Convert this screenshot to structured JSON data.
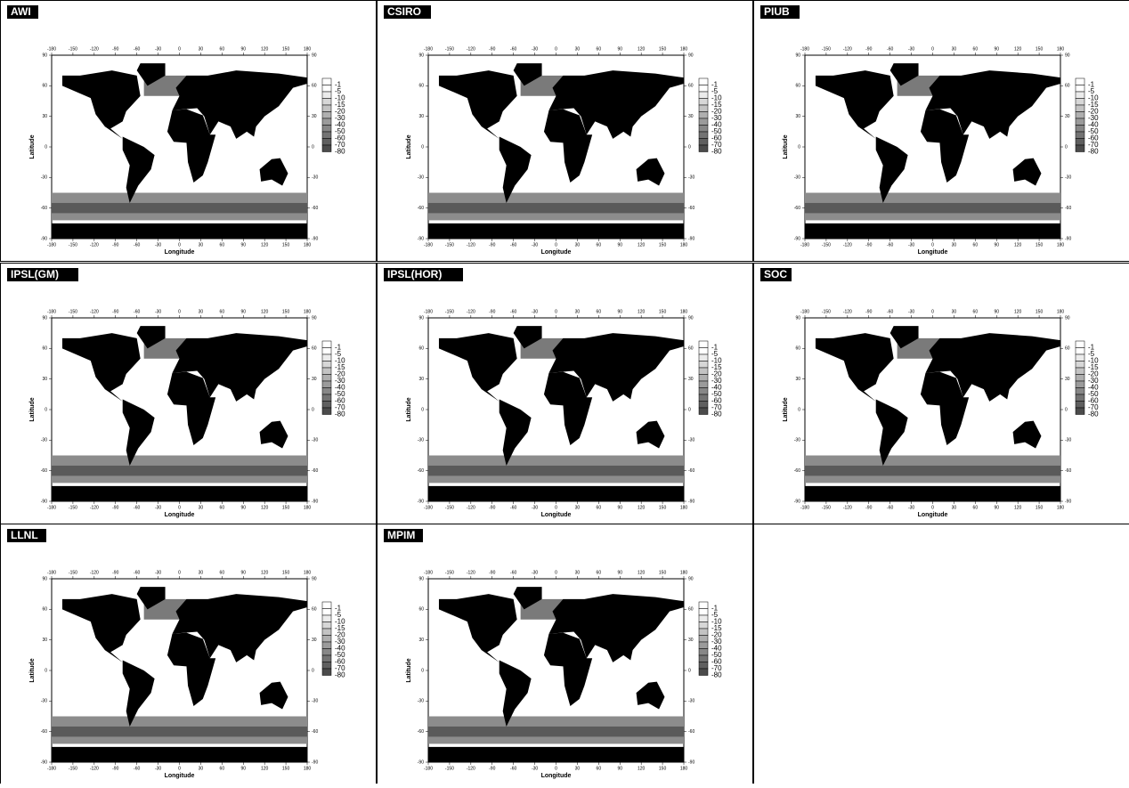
{
  "panels": [
    {
      "label": "AWI"
    },
    {
      "label": "CSIRO"
    },
    {
      "label": "PIUB"
    },
    {
      "label": "IPSL(GM)"
    },
    {
      "label": "IPSL(HOR)"
    },
    {
      "label": "SOC"
    },
    {
      "label": "LLNL"
    },
    {
      "label": "MPIM"
    }
  ],
  "axes": {
    "x_label": "Longitude",
    "y_label": "Latitude",
    "xticks": [
      -180,
      -150,
      -120,
      -90,
      -60,
      -30,
      0,
      30,
      60,
      90,
      120,
      150,
      180
    ],
    "yticks": [
      -90,
      -60,
      -30,
      0,
      30,
      60,
      90
    ]
  },
  "legend": {
    "levels": [
      -1,
      -5,
      -10,
      -15,
      -20,
      -30,
      -40,
      -50,
      -60,
      -70,
      -80
    ]
  }
}
